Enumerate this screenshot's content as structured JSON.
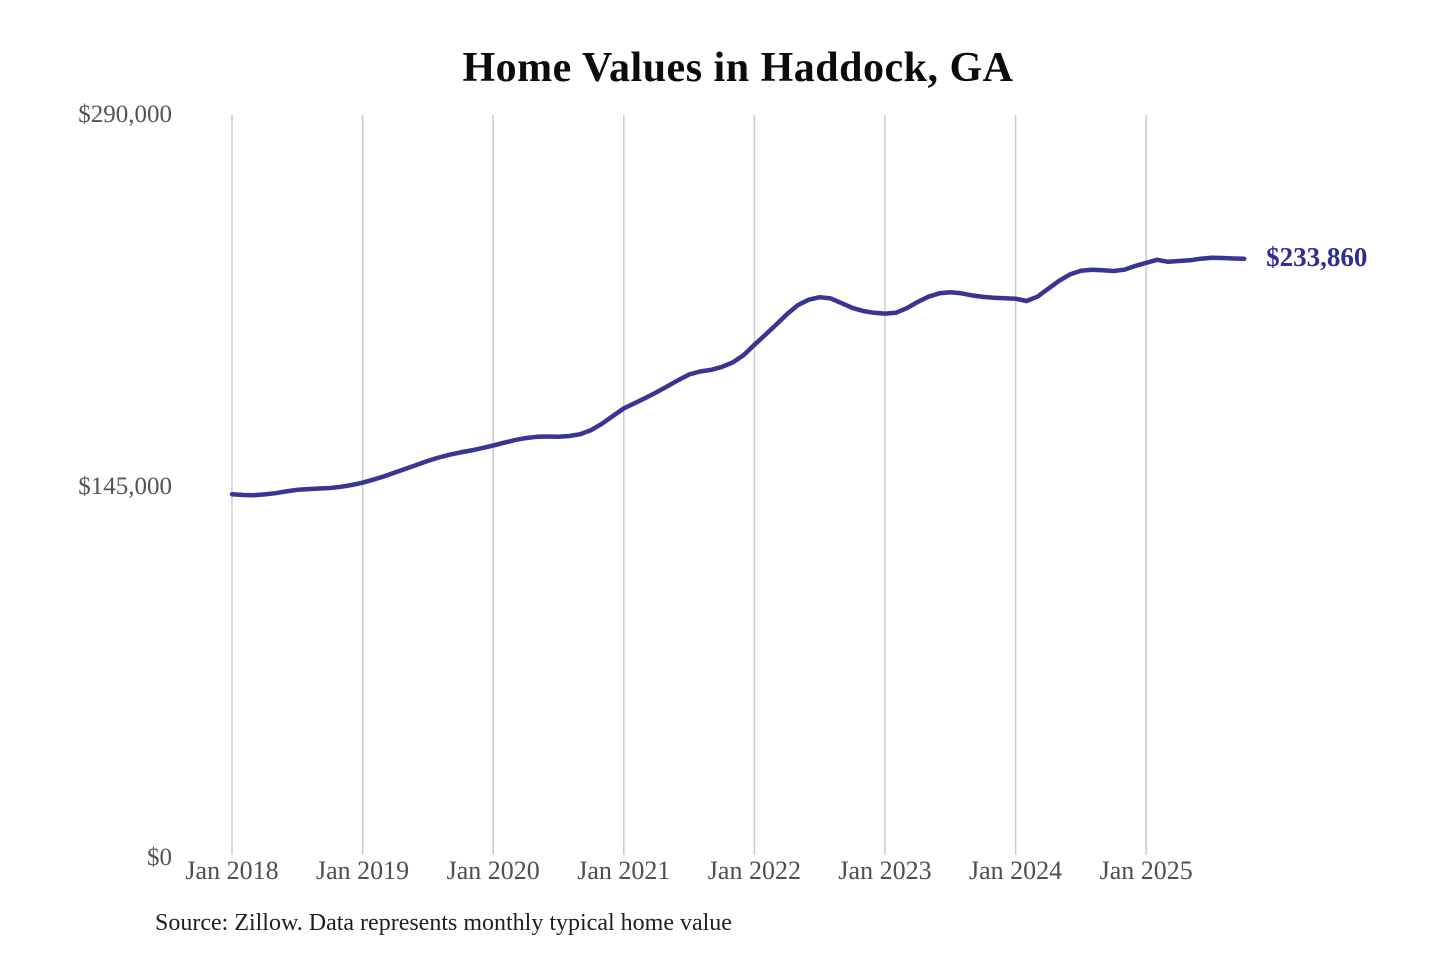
{
  "title": "Home Values in Haddock, GA",
  "source_note": "Source: Zillow. Data represents monthly typical home value",
  "end_label": "$233,860",
  "colors": {
    "line": "#3a3494",
    "end_label": "#312c96",
    "gridline": "#cbcbcb",
    "y_axis_text": "#545454",
    "x_axis_text": "#4f4f4f",
    "title_text": "#0c0c0c",
    "source_text": "#1f1f1f",
    "background": "#ffffff"
  },
  "chart_data": {
    "type": "line",
    "title": "Home Values in Haddock, GA",
    "xlabel": "",
    "ylabel": "",
    "ylim": [
      0,
      290000
    ],
    "grid": "vertical-only",
    "legend": "none",
    "x_start": "2018-01",
    "x_end": "2025-10",
    "x_interval": "monthly",
    "x_tick_labels": [
      "Jan 2018",
      "Jan 2019",
      "Jan 2020",
      "Jan 2021",
      "Jan 2022",
      "Jan 2023",
      "Jan 2024",
      "Jan 2025"
    ],
    "y_ticks": [
      {
        "label": "$0",
        "value": 0
      },
      {
        "label": "$145,000",
        "value": 145000
      },
      {
        "label": "$290,000",
        "value": 290000
      }
    ],
    "end_value_label": "$233,860",
    "series": [
      {
        "name": "Monthly typical home value",
        "values": [
          142000,
          141700,
          141600,
          141900,
          142400,
          143100,
          143700,
          144000,
          144200,
          144400,
          144900,
          145600,
          146500,
          147700,
          149000,
          150500,
          152000,
          153500,
          155000,
          156300,
          157400,
          158300,
          159100,
          160000,
          161000,
          162100,
          163100,
          163900,
          164400,
          164500,
          164400,
          164700,
          165400,
          167000,
          169500,
          172500,
          175500,
          177500,
          179600,
          181800,
          184100,
          186500,
          188700,
          189900,
          190500,
          191700,
          193400,
          196200,
          200300,
          204200,
          208200,
          212300,
          215800,
          217900,
          218900,
          218400,
          216600,
          214700,
          213500,
          212800,
          212500,
          212800,
          214600,
          217000,
          219100,
          220400,
          220800,
          220400,
          219600,
          219000,
          218700,
          218500,
          218300,
          217400,
          219100,
          222200,
          225300,
          227800,
          229200,
          229600,
          229400,
          229100,
          229600,
          231100,
          232300,
          233500,
          232700,
          233000,
          233300,
          233900,
          234300,
          234200,
          234000,
          233860
        ]
      }
    ]
  }
}
